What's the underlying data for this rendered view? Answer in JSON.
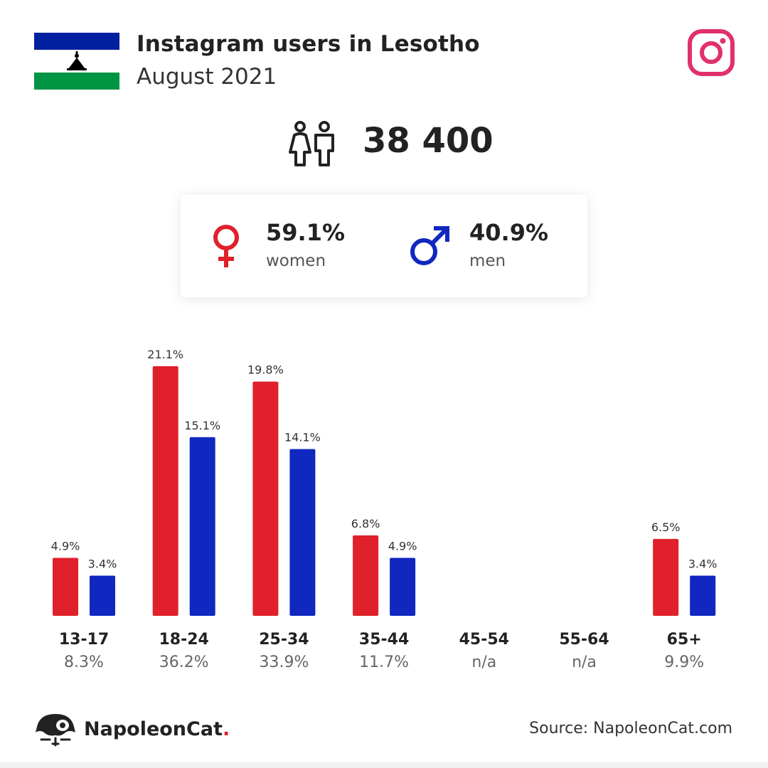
{
  "header": {
    "title": "Instagram users in Lesotho",
    "subtitle": "August 2021"
  },
  "icons": {
    "flag": "lesotho-flag",
    "platform": "instagram-icon",
    "people": "people-icon",
    "female": "female-symbol-icon",
    "male": "male-symbol-icon",
    "brand": "napoleoncat-logo-icon"
  },
  "total": {
    "value": "38 400"
  },
  "gender": {
    "women": {
      "pct": "59.1%",
      "label": "women"
    },
    "men": {
      "pct": "40.9%",
      "label": "men"
    }
  },
  "colors": {
    "women": "#e0202a",
    "men": "#1028c0",
    "instagram": "#e1306c",
    "flag_blue": "#00209f",
    "flag_green": "#009543"
  },
  "chart_data": {
    "type": "bar",
    "categories": [
      "13-17",
      "18-24",
      "25-34",
      "35-44",
      "45-54",
      "55-64",
      "65+"
    ],
    "category_totals": [
      "8.3%",
      "36.2%",
      "33.9%",
      "11.7%",
      "n/a",
      "n/a",
      "9.9%"
    ],
    "series": [
      {
        "name": "women",
        "values": [
          4.9,
          21.1,
          19.8,
          6.8,
          null,
          null,
          6.5
        ],
        "labels": [
          "4.9%",
          "21.1%",
          "19.8%",
          "6.8%",
          "",
          "",
          "6.5%"
        ]
      },
      {
        "name": "men",
        "values": [
          3.4,
          15.1,
          14.1,
          4.9,
          null,
          null,
          3.4
        ],
        "labels": [
          "3.4%",
          "15.1%",
          "14.1%",
          "4.9%",
          "",
          "",
          "3.4%"
        ]
      }
    ],
    "ylim": [
      0,
      21.1
    ],
    "grid": false
  },
  "footer": {
    "brand": "NapoleonCat",
    "brand_dot": ".",
    "source": "Source: NapoleonCat.com"
  }
}
